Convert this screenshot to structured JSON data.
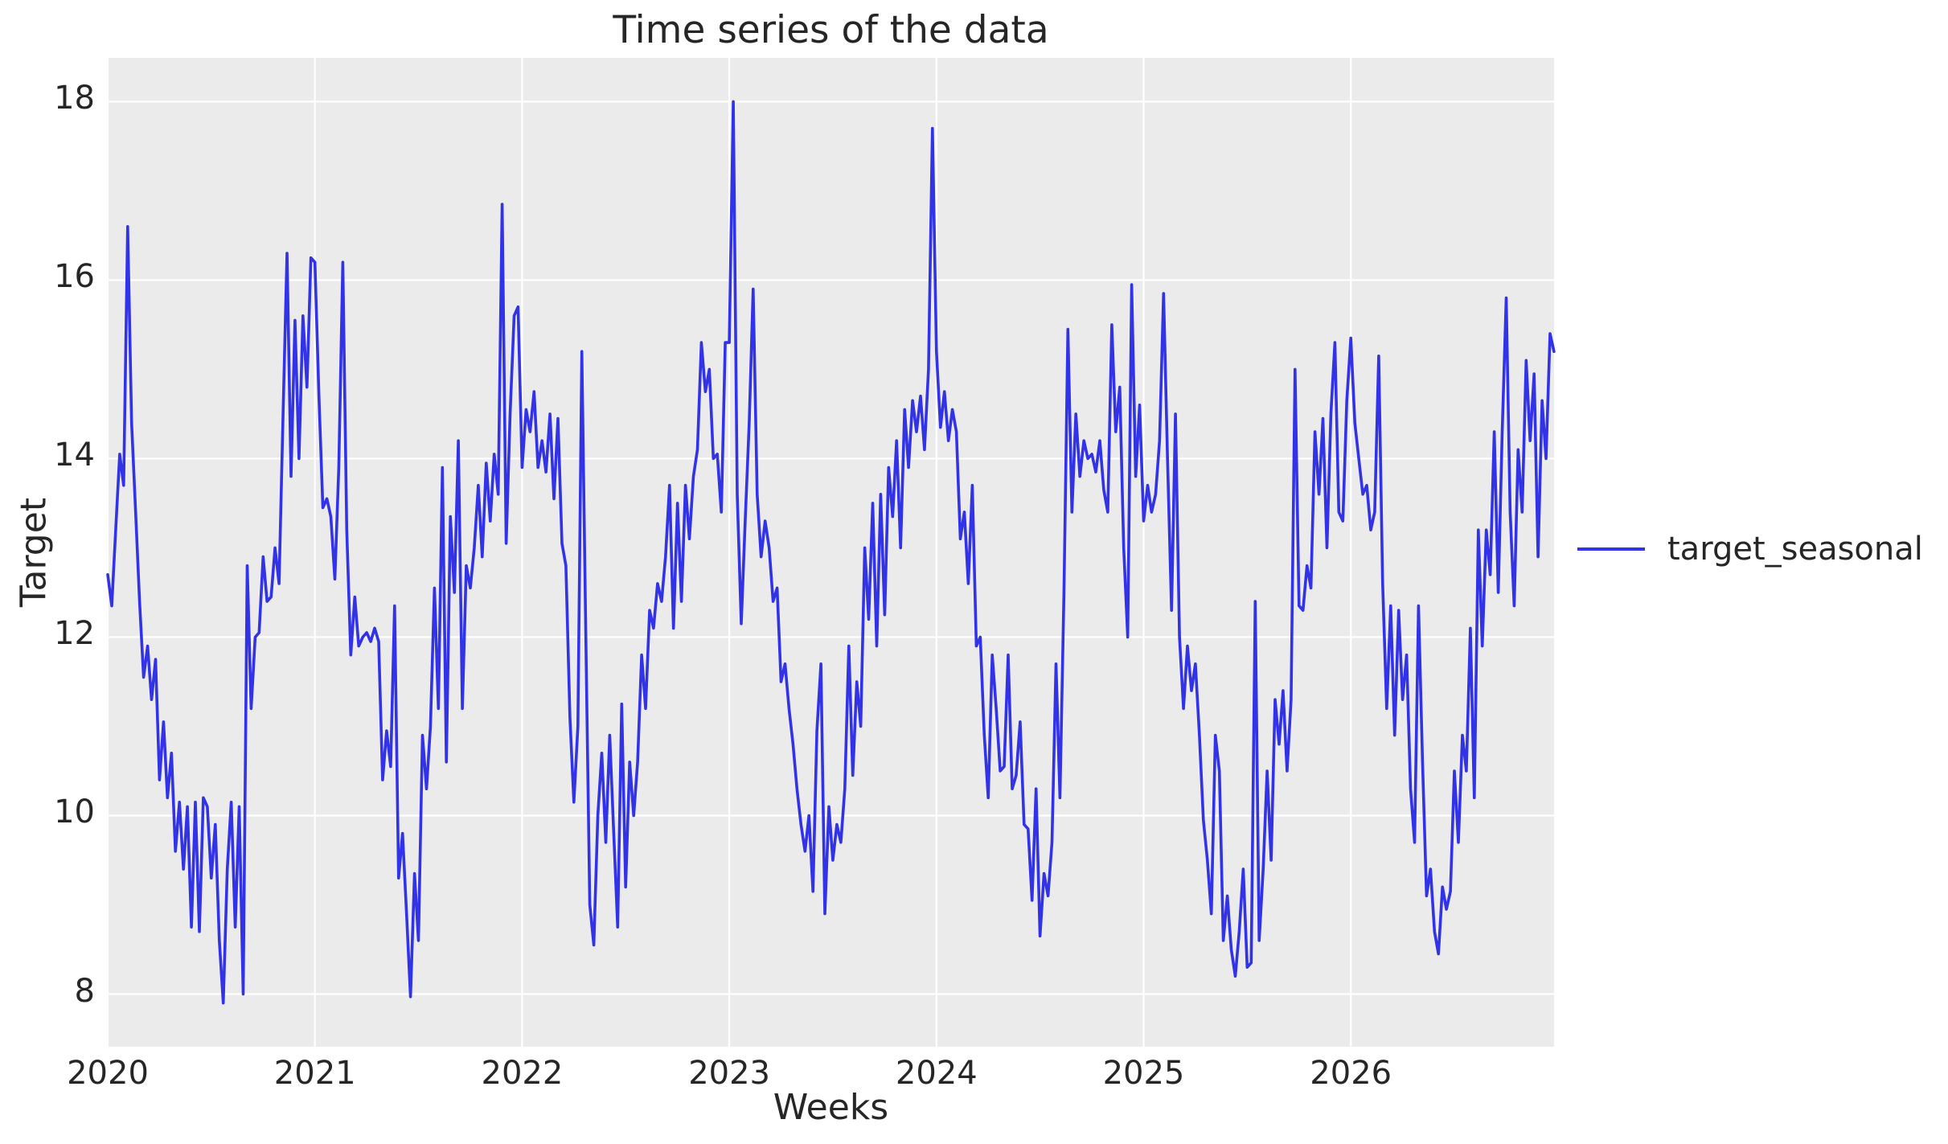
{
  "title": "Time series of the data",
  "legend": {
    "label": "target_seasonal",
    "position": "center right, outside plot"
  },
  "colors": {
    "line": "#3232e6",
    "plot_background": "#ebebeb",
    "grid": "#ffffff",
    "text": "#262626",
    "figure_background": "#ffffff"
  },
  "chart_data": {
    "type": "line",
    "title": "Time series of the data",
    "xlabel": "Weeks",
    "ylabel": "Target",
    "grid": true,
    "legend_position": "right",
    "x_tick_labels": [
      "2020",
      "2021",
      "2022",
      "2023",
      "2024",
      "2025",
      "2026"
    ],
    "x_tick_values": [
      2020,
      2021,
      2022,
      2023,
      2024,
      2025,
      2026
    ],
    "y_tick_labels": [
      "8",
      "10",
      "12",
      "14",
      "16",
      "18"
    ],
    "y_tick_values": [
      8,
      10,
      12,
      14,
      16,
      18
    ],
    "xlim": [
      2020,
      2026.981
    ],
    "ylim": [
      7.41,
      18.49
    ],
    "x_unit": "years (weekly samples)",
    "series": [
      {
        "name": "target_seasonal",
        "color": "#3232e6",
        "x_start": 2020,
        "points_per_year": 52,
        "values": [
          12.7,
          12.35,
          13.2,
          14.05,
          13.7,
          16.6,
          14.4,
          13.4,
          12.4,
          11.55,
          11.9,
          11.3,
          11.75,
          10.4,
          11.05,
          10.2,
          10.7,
          9.6,
          10.15,
          9.4,
          10.1,
          8.75,
          10.15,
          8.7,
          10.2,
          10.1,
          9.3,
          9.9,
          8.6,
          7.9,
          9.4,
          10.15,
          8.75,
          10.1,
          8.0,
          12.8,
          11.2,
          12.0,
          12.05,
          12.9,
          12.4,
          12.45,
          13.0,
          12.6,
          14.5,
          16.3,
          13.8,
          15.55,
          14.0,
          15.6,
          14.8,
          16.25,
          16.2,
          14.7,
          13.45,
          13.55,
          13.35,
          12.65,
          13.9,
          16.2,
          13.2,
          11.8,
          12.45,
          11.9,
          12.0,
          12.05,
          11.95,
          12.1,
          11.95,
          10.4,
          10.95,
          10.55,
          12.35,
          9.3,
          9.8,
          8.9,
          7.97,
          9.35,
          8.6,
          10.9,
          10.3,
          11.0,
          12.55,
          11.2,
          13.9,
          10.6,
          13.35,
          12.5,
          14.2,
          11.2,
          12.8,
          12.55,
          13.0,
          13.7,
          12.9,
          13.95,
          13.3,
          14.05,
          13.6,
          16.85,
          13.05,
          14.5,
          15.6,
          15.7,
          13.9,
          14.55,
          14.3,
          14.75,
          13.9,
          14.2,
          13.85,
          14.5,
          13.55,
          14.45,
          13.05,
          12.8,
          11.1,
          10.15,
          11.0,
          15.2,
          12.0,
          9.0,
          8.55,
          10.0,
          10.7,
          9.7,
          10.9,
          9.8,
          8.75,
          11.25,
          9.2,
          10.6,
          10.0,
          10.6,
          11.8,
          11.2,
          12.3,
          12.1,
          12.6,
          12.4,
          12.9,
          13.7,
          12.1,
          13.5,
          12.4,
          13.7,
          13.1,
          13.8,
          14.1,
          15.3,
          14.75,
          15.0,
          14.0,
          14.05,
          13.4,
          15.3,
          15.3,
          18.0,
          13.6,
          12.15,
          13.3,
          14.4,
          15.9,
          13.6,
          12.9,
          13.3,
          13.0,
          12.4,
          12.55,
          11.5,
          11.7,
          11.2,
          10.8,
          10.3,
          9.9,
          9.6,
          10.0,
          9.15,
          10.95,
          11.7,
          8.9,
          10.1,
          9.5,
          9.9,
          9.7,
          10.3,
          11.9,
          10.45,
          11.5,
          11.0,
          13.0,
          12.2,
          13.5,
          11.9,
          13.6,
          12.25,
          13.9,
          13.35,
          14.2,
          13.0,
          14.55,
          13.9,
          14.65,
          14.3,
          14.7,
          14.1,
          15.0,
          17.7,
          15.2,
          14.35,
          14.75,
          14.2,
          14.55,
          14.3,
          13.1,
          13.4,
          12.6,
          13.7,
          11.9,
          12.0,
          10.9,
          10.2,
          11.8,
          11.2,
          10.5,
          10.55,
          11.8,
          10.3,
          10.45,
          11.05,
          9.9,
          9.85,
          9.05,
          10.3,
          8.65,
          9.35,
          9.1,
          9.7,
          11.7,
          10.2,
          12.5,
          15.45,
          13.4,
          14.5,
          13.8,
          14.2,
          14.0,
          14.05,
          13.85,
          14.2,
          13.65,
          13.4,
          15.5,
          14.3,
          14.8,
          13.0,
          12.0,
          15.95,
          13.8,
          14.6,
          13.3,
          13.7,
          13.4,
          13.6,
          14.2,
          15.85,
          14.0,
          12.3,
          14.5,
          12.0,
          11.2,
          11.9,
          11.4,
          11.7,
          10.9,
          9.95,
          9.5,
          8.9,
          10.9,
          10.5,
          8.6,
          9.1,
          8.5,
          8.2,
          8.7,
          9.4,
          8.3,
          8.35,
          12.4,
          8.6,
          9.4,
          10.5,
          9.5,
          11.3,
          10.8,
          11.4,
          10.5,
          11.3,
          15.0,
          12.35,
          12.3,
          12.8,
          12.55,
          14.3,
          13.6,
          14.45,
          13.0,
          14.5,
          15.3,
          13.4,
          13.3,
          14.65,
          15.35,
          14.4,
          14.0,
          13.6,
          13.7,
          13.2,
          13.4,
          15.15,
          12.6,
          11.2,
          12.35,
          10.9,
          12.3,
          11.3,
          11.8,
          10.3,
          9.7,
          12.35,
          10.6,
          9.1,
          9.4,
          8.7,
          8.45,
          9.2,
          8.95,
          9.15,
          10.5,
          9.7,
          10.9,
          10.5,
          12.1,
          10.2,
          13.2,
          11.9,
          13.2,
          12.7,
          14.3,
          12.5,
          14.3,
          15.8,
          13.4,
          12.35,
          14.1,
          13.4,
          15.1,
          14.2,
          14.95,
          12.9,
          14.65,
          14.0,
          15.4,
          15.2
        ]
      }
    ]
  }
}
